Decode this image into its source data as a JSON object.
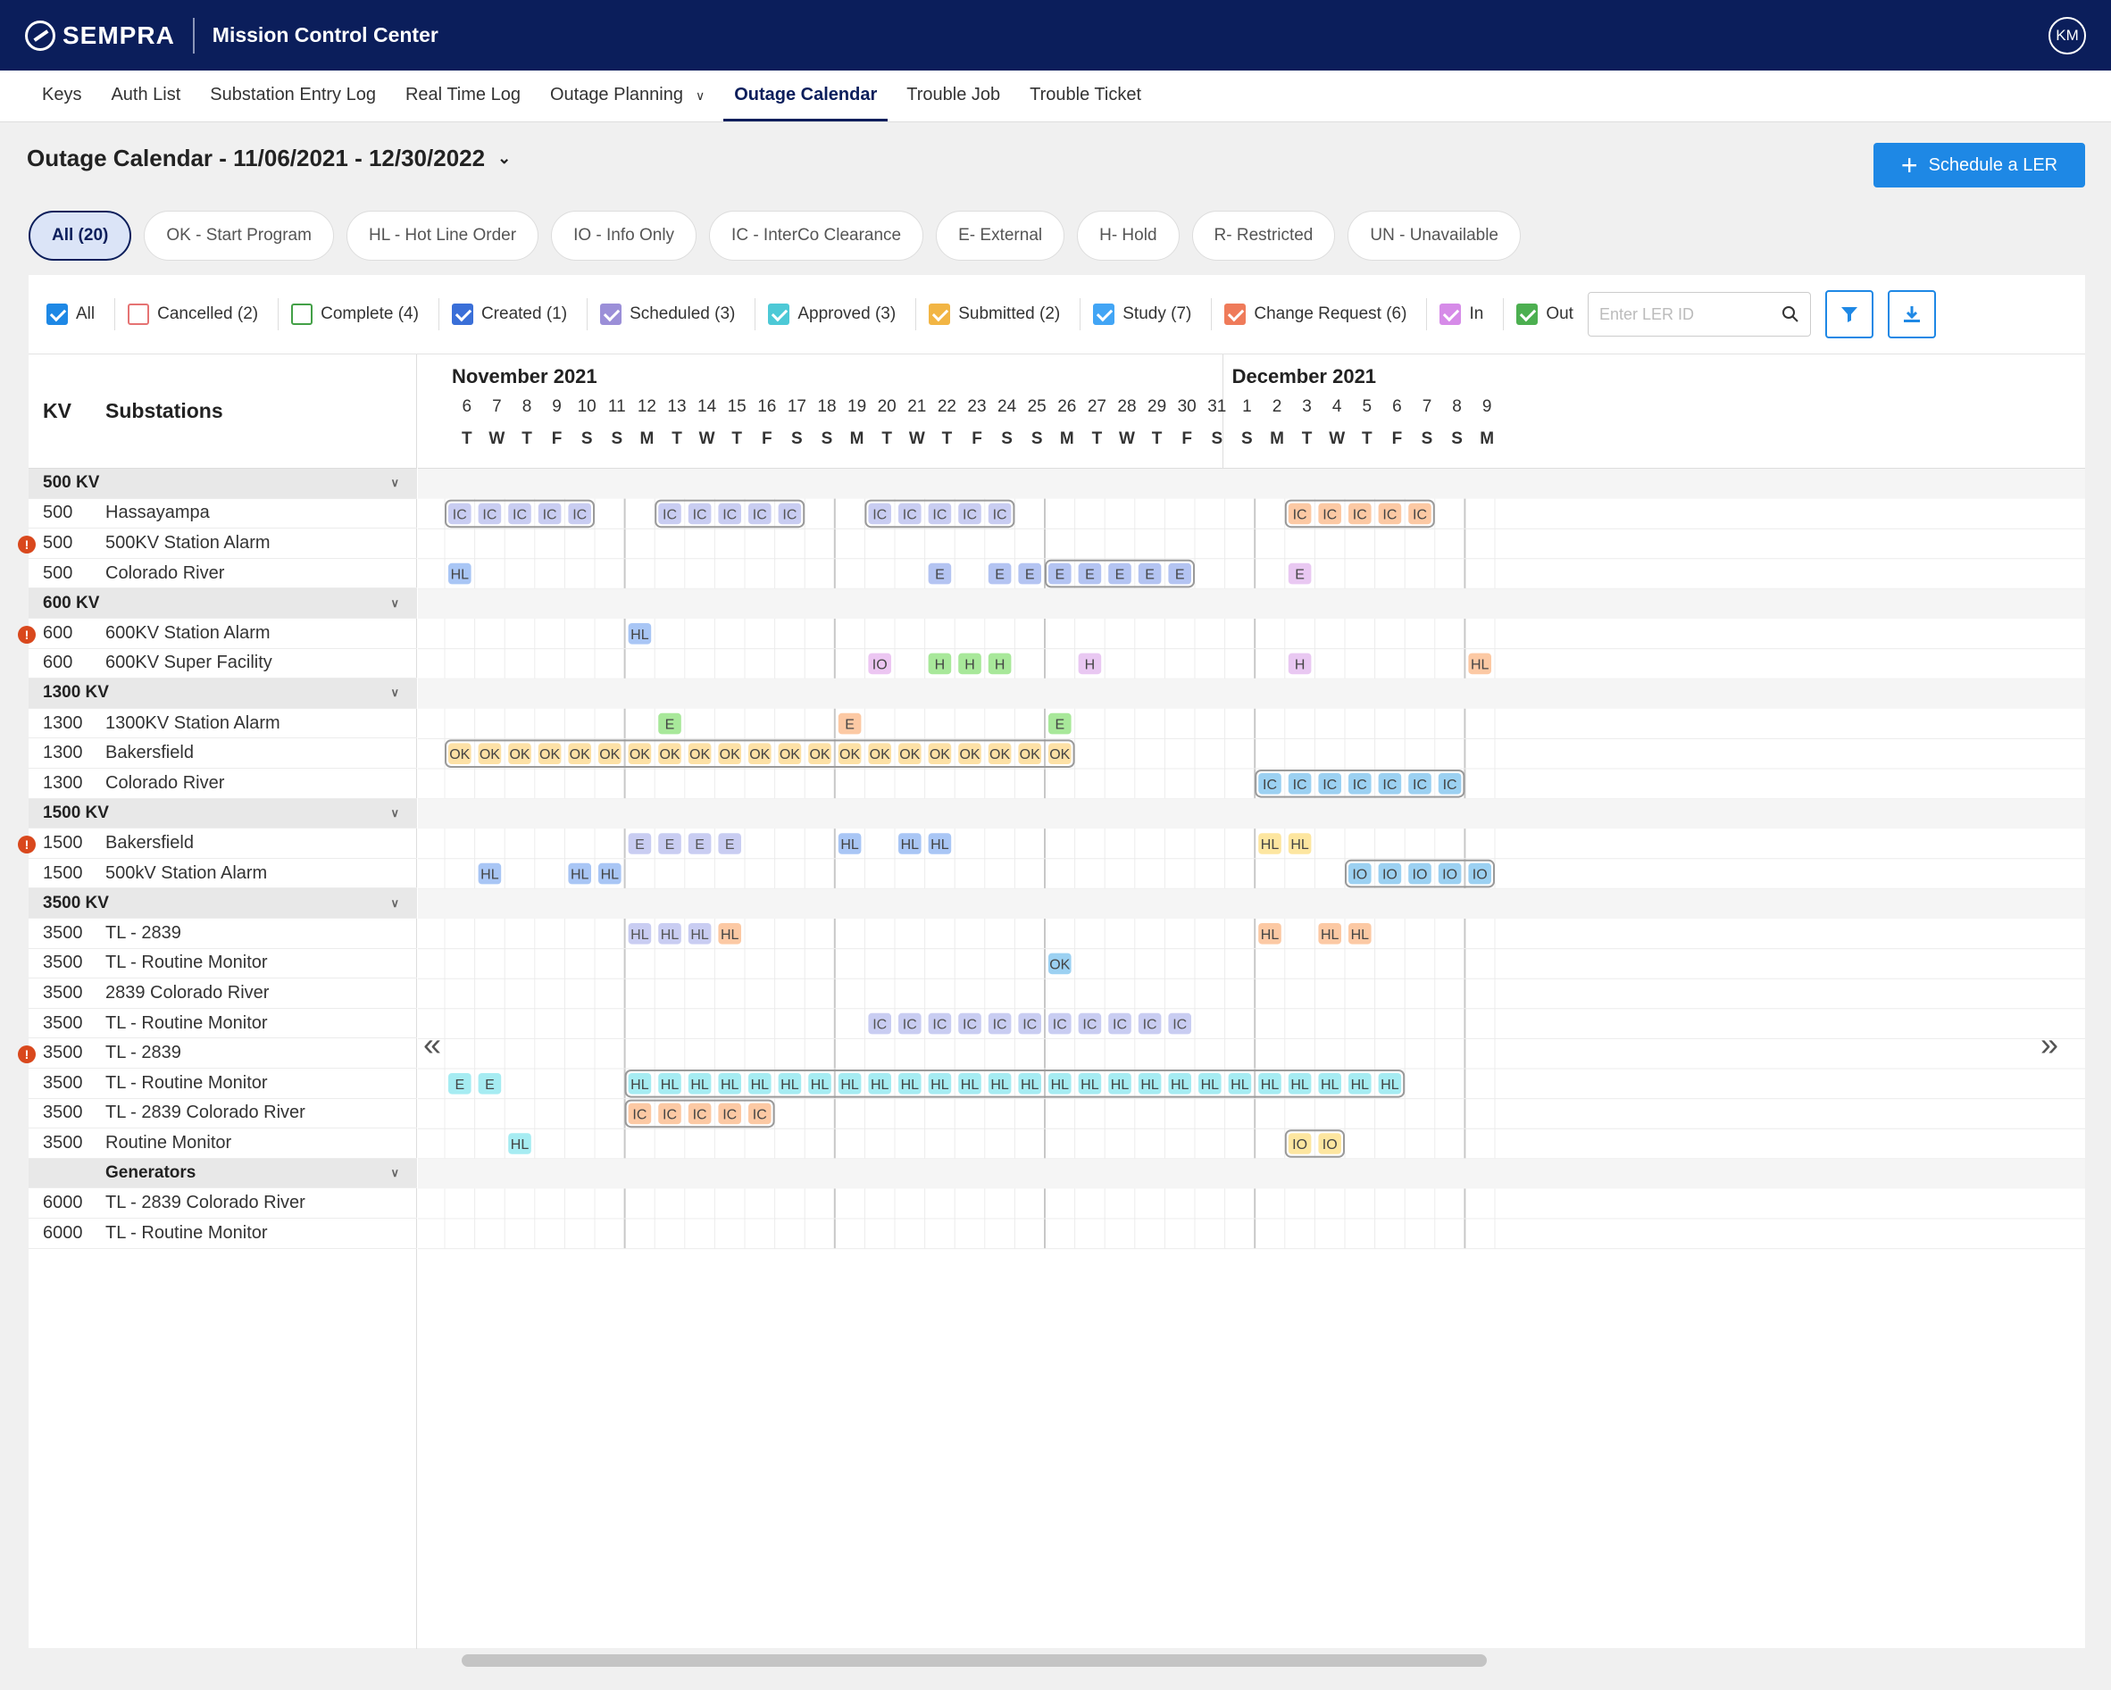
{
  "header": {
    "brand": "SEMPRA",
    "app_title": "Mission Control Center",
    "avatar_initials": "KM",
    "brand_color": "#0b1e5b"
  },
  "nav": {
    "items": [
      "Keys",
      "Auth List",
      "Substation Entry Log",
      "Real Time Log",
      "Outage Planning",
      "Outage Calendar",
      "Trouble Job",
      "Trouble Ticket"
    ],
    "active": "Outage Calendar",
    "dropdown_item": "Outage Planning"
  },
  "page": {
    "title": "Outage Calendar - 11/06/2021 - 12/30/2022",
    "schedule_button": "Schedule a LER",
    "accent_color": "#1e88e5"
  },
  "type_pills": [
    "All (20)",
    "OK - Start Program",
    "HL - Hot Line Order",
    "IO - Info Only",
    "IC - InterCo Clearance",
    "E- External",
    "H- Hold",
    "R- Restricted",
    "UN - Unavailable"
  ],
  "status_filters": [
    {
      "label": "All",
      "checked": true,
      "color": "#1e88e5"
    },
    {
      "label": "Cancelled (2)",
      "checked": false,
      "color": "#e57373"
    },
    {
      "label": "Complete (4)",
      "checked": false,
      "color": "#43a047"
    },
    {
      "label": "Created (1)",
      "checked": true,
      "color": "#3a6fd8"
    },
    {
      "label": "Scheduled (3)",
      "checked": true,
      "color": "#9b8fd8"
    },
    {
      "label": "Approved (3)",
      "checked": true,
      "color": "#4dc9d6"
    },
    {
      "label": "Submitted (2)",
      "checked": true,
      "color": "#f2b544"
    },
    {
      "label": "Study (7)",
      "checked": true,
      "color": "#42a5f5"
    },
    {
      "label": "Change Request (6)",
      "checked": true,
      "color": "#ef7b5a"
    },
    {
      "label": "In",
      "checked": true,
      "color": "#d68be8"
    },
    {
      "label": "Out",
      "checked": true,
      "color": "#4caf50"
    }
  ],
  "search": {
    "placeholder": "Enter LER ID"
  },
  "calendar": {
    "col_kv": "KV",
    "col_substations": "Substations",
    "months": [
      {
        "label": "November 2021",
        "start_index": 0
      },
      {
        "label": "December 2021",
        "start_index": 26
      }
    ],
    "days": [
      {
        "d": "6",
        "w": "T"
      },
      {
        "d": "7",
        "w": "W"
      },
      {
        "d": "8",
        "w": "T"
      },
      {
        "d": "9",
        "w": "F"
      },
      {
        "d": "10",
        "w": "S"
      },
      {
        "d": "11",
        "w": "S"
      },
      {
        "d": "12",
        "w": "M"
      },
      {
        "d": "13",
        "w": "T"
      },
      {
        "d": "14",
        "w": "W"
      },
      {
        "d": "15",
        "w": "T"
      },
      {
        "d": "16",
        "w": "F"
      },
      {
        "d": "17",
        "w": "S"
      },
      {
        "d": "18",
        "w": "S"
      },
      {
        "d": "19",
        "w": "M"
      },
      {
        "d": "20",
        "w": "T"
      },
      {
        "d": "21",
        "w": "W"
      },
      {
        "d": "22",
        "w": "T"
      },
      {
        "d": "23",
        "w": "F"
      },
      {
        "d": "24",
        "w": "S"
      },
      {
        "d": "25",
        "w": "S"
      },
      {
        "d": "26",
        "w": "M"
      },
      {
        "d": "27",
        "w": "T"
      },
      {
        "d": "28",
        "w": "W"
      },
      {
        "d": "29",
        "w": "T"
      },
      {
        "d": "30",
        "w": "F"
      },
      {
        "d": "31",
        "w": "S"
      },
      {
        "d": "1",
        "w": "S"
      },
      {
        "d": "2",
        "w": "M"
      },
      {
        "d": "3",
        "w": "T"
      },
      {
        "d": "4",
        "w": "W"
      },
      {
        "d": "5",
        "w": "T"
      },
      {
        "d": "6",
        "w": "F"
      },
      {
        "d": "7",
        "w": "S"
      },
      {
        "d": "8",
        "w": "S"
      },
      {
        "d": "9",
        "w": "M"
      }
    ],
    "colors": {
      "IC": {
        "bg": "#c9cdf2",
        "fg": "#555"
      },
      "HL": {
        "bg": "#a9c6f5",
        "fg": "#444"
      },
      "E": {
        "bg": "#b4c4f2",
        "fg": "#444"
      },
      "IO": {
        "bg": "#ecc6f2",
        "fg": "#444"
      },
      "H": {
        "bg": "#a8e89a",
        "fg": "#444"
      },
      "OK": {
        "bg": "#fde1a6",
        "fg": "#444"
      },
      "cyan": {
        "bg": "#a6ecf2",
        "fg": "#444"
      },
      "orange": {
        "bg": "#fcc9a4",
        "fg": "#444"
      },
      "yellow": {
        "bg": "#fde6a0",
        "fg": "#444"
      },
      "blue": {
        "bg": "#9cd1f2",
        "fg": "#444"
      },
      "purple": {
        "bg": "#e9c8f2",
        "fg": "#444"
      }
    },
    "rows": [
      {
        "kind": "group",
        "label": "500 KV"
      },
      {
        "kind": "row",
        "kv": "500",
        "name": "Hassayampa",
        "alert": false,
        "events": [
          {
            "start": 0,
            "end": 4,
            "label": "IC",
            "color": "IC",
            "boxed": true
          },
          {
            "start": 7,
            "end": 11,
            "label": "IC",
            "color": "IC",
            "boxed": true
          },
          {
            "start": 14,
            "end": 18,
            "label": "IC",
            "color": "IC",
            "boxed": true
          },
          {
            "start": 28,
            "end": 32,
            "label": "IC",
            "color": "orange",
            "boxed": true
          }
        ]
      },
      {
        "kind": "row",
        "kv": "500",
        "name": "500KV Station Alarm",
        "alert": true,
        "events": []
      },
      {
        "kind": "row",
        "kv": "500",
        "name": "Colorado River",
        "alert": false,
        "events": [
          {
            "start": 0,
            "end": 0,
            "label": "HL",
            "color": "HL"
          },
          {
            "start": 16,
            "end": 16,
            "label": "E",
            "color": "E"
          },
          {
            "start": 18,
            "end": 18,
            "label": "E",
            "color": "E"
          },
          {
            "start": 19,
            "end": 19,
            "label": "E",
            "color": "E"
          },
          {
            "start": 20,
            "end": 24,
            "label": "E",
            "color": "E",
            "boxed": true
          },
          {
            "start": 28,
            "end": 28,
            "label": "E",
            "color": "purple"
          }
        ]
      },
      {
        "kind": "group",
        "label": "600 KV"
      },
      {
        "kind": "row",
        "kv": "600",
        "name": "600KV Station Alarm",
        "alert": true,
        "events": [
          {
            "start": 6,
            "end": 6,
            "label": "HL",
            "color": "HL"
          }
        ]
      },
      {
        "kind": "row",
        "kv": "600",
        "name": "600KV Super Facility",
        "alert": false,
        "events": [
          {
            "start": 14,
            "end": 14,
            "label": "IO",
            "color": "IO"
          },
          {
            "start": 16,
            "end": 16,
            "label": "H",
            "color": "H"
          },
          {
            "start": 17,
            "end": 17,
            "label": "H",
            "color": "H"
          },
          {
            "start": 18,
            "end": 18,
            "label": "H",
            "color": "H"
          },
          {
            "start": 21,
            "end": 21,
            "label": "H",
            "color": "purple"
          },
          {
            "start": 28,
            "end": 28,
            "label": "H",
            "color": "purple"
          },
          {
            "start": 34,
            "end": 34,
            "label": "HL",
            "color": "orange"
          }
        ]
      },
      {
        "kind": "group",
        "label": "1300 KV"
      },
      {
        "kind": "row",
        "kv": "1300",
        "name": "1300KV Station Alarm",
        "alert": false,
        "events": [
          {
            "start": 7,
            "end": 7,
            "label": "E",
            "color": "H"
          },
          {
            "start": 13,
            "end": 13,
            "label": "E",
            "color": "orange"
          },
          {
            "start": 20,
            "end": 20,
            "label": "E",
            "color": "H"
          }
        ]
      },
      {
        "kind": "row",
        "kv": "1300",
        "name": "Bakersfield",
        "alert": false,
        "events": [
          {
            "start": 0,
            "end": 20,
            "label": "OK",
            "color": "OK",
            "boxed": true
          }
        ]
      },
      {
        "kind": "row",
        "kv": "1300",
        "name": "Colorado River",
        "alert": false,
        "events": [
          {
            "start": 27,
            "end": 33,
            "label": "IC",
            "color": "blue",
            "boxed": true
          }
        ]
      },
      {
        "kind": "group",
        "label": "1500 KV"
      },
      {
        "kind": "row",
        "kv": "1500",
        "name": "Bakersfield",
        "alert": true,
        "events": [
          {
            "start": 6,
            "end": 6,
            "label": "E",
            "color": "IC"
          },
          {
            "start": 7,
            "end": 7,
            "label": "E",
            "color": "IC"
          },
          {
            "start": 8,
            "end": 8,
            "label": "E",
            "color": "IC"
          },
          {
            "start": 9,
            "end": 9,
            "label": "E",
            "color": "IC"
          },
          {
            "start": 13,
            "end": 13,
            "label": "HL",
            "color": "HL"
          },
          {
            "start": 15,
            "end": 15,
            "label": "HL",
            "color": "HL"
          },
          {
            "start": 16,
            "end": 16,
            "label": "HL",
            "color": "HL"
          },
          {
            "start": 27,
            "end": 27,
            "label": "HL",
            "color": "yellow"
          },
          {
            "start": 28,
            "end": 28,
            "label": "HL",
            "color": "yellow"
          }
        ]
      },
      {
        "kind": "row",
        "kv": "1500",
        "name": "500kV Station Alarm",
        "alert": false,
        "events": [
          {
            "start": 1,
            "end": 1,
            "label": "HL",
            "color": "HL"
          },
          {
            "start": 4,
            "end": 4,
            "label": "HL",
            "color": "HL"
          },
          {
            "start": 5,
            "end": 5,
            "label": "HL",
            "color": "HL"
          },
          {
            "start": 30,
            "end": 34,
            "label": "IO",
            "color": "blue",
            "boxed": true
          }
        ]
      },
      {
        "kind": "group",
        "label": "3500 KV"
      },
      {
        "kind": "row",
        "kv": "3500",
        "name": "TL - 2839",
        "alert": false,
        "events": [
          {
            "start": 6,
            "end": 6,
            "label": "HL",
            "color": "IC"
          },
          {
            "start": 7,
            "end": 7,
            "label": "HL",
            "color": "IC"
          },
          {
            "start": 8,
            "end": 8,
            "label": "HL",
            "color": "IC"
          },
          {
            "start": 9,
            "end": 9,
            "label": "HL",
            "color": "orange"
          },
          {
            "start": 27,
            "end": 27,
            "label": "HL",
            "color": "orange"
          },
          {
            "start": 29,
            "end": 29,
            "label": "HL",
            "color": "orange"
          },
          {
            "start": 30,
            "end": 30,
            "label": "HL",
            "color": "orange"
          }
        ]
      },
      {
        "kind": "row",
        "kv": "3500",
        "name": "TL - Routine Monitor",
        "alert": false,
        "events": [
          {
            "start": 20,
            "end": 20,
            "label": "OK",
            "color": "blue"
          }
        ]
      },
      {
        "kind": "row",
        "kv": "3500",
        "name": "2839 Colorado River",
        "alert": false,
        "events": []
      },
      {
        "kind": "row",
        "kv": "3500",
        "name": "TL - Routine Monitor",
        "alert": false,
        "events": [
          {
            "start": 14,
            "end": 24,
            "label": "IC",
            "color": "IC",
            "plain": true
          }
        ]
      },
      {
        "kind": "row",
        "kv": "3500",
        "name": "TL - 2839",
        "alert": true,
        "events": []
      },
      {
        "kind": "row",
        "kv": "3500",
        "name": "TL - Routine Monitor",
        "alert": false,
        "events": [
          {
            "start": 0,
            "end": 0,
            "label": "E",
            "color": "cyan"
          },
          {
            "start": 1,
            "end": 1,
            "label": "E",
            "color": "cyan"
          },
          {
            "start": 6,
            "end": 31,
            "label": "HL",
            "color": "cyan",
            "boxed": true
          }
        ]
      },
      {
        "kind": "row",
        "kv": "3500",
        "name": "TL - 2839 Colorado River",
        "alert": false,
        "events": [
          {
            "start": 6,
            "end": 10,
            "label": "IC",
            "color": "orange",
            "boxed": true
          }
        ]
      },
      {
        "kind": "row",
        "kv": "3500",
        "name": "Routine Monitor",
        "alert": false,
        "events": [
          {
            "start": 2,
            "end": 2,
            "label": "HL",
            "color": "cyan"
          },
          {
            "start": 28,
            "end": 29,
            "label": "IO",
            "color": "yellow",
            "boxed": true
          }
        ]
      },
      {
        "kind": "group",
        "label": "Generators",
        "indent": true
      },
      {
        "kind": "row",
        "kv": "6000",
        "name": "TL - 2839 Colorado River",
        "alert": false,
        "events": []
      },
      {
        "kind": "row",
        "kv": "6000",
        "name": "TL - Routine Monitor",
        "alert": false,
        "events": []
      }
    ]
  }
}
